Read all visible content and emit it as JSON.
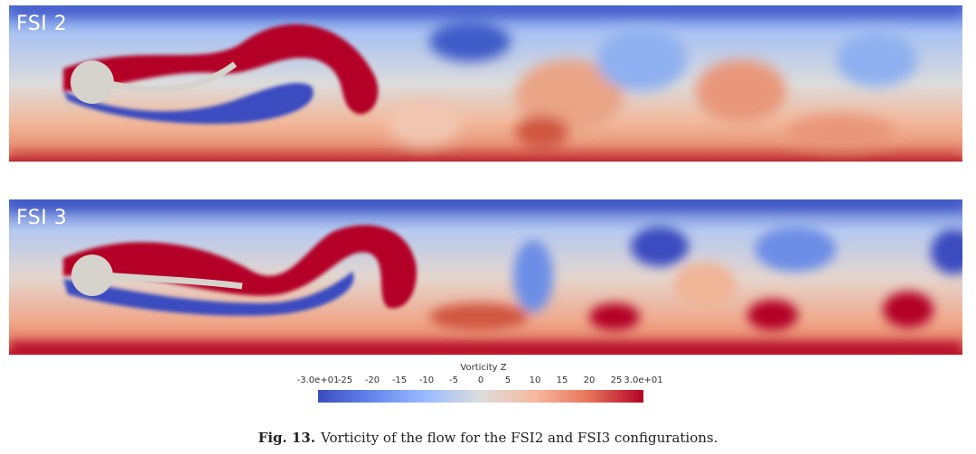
{
  "panels": [
    {
      "label": "FSI 2"
    },
    {
      "label": "FSI 3"
    }
  ],
  "colorbar": {
    "title": "Vorticity Z",
    "ticks": [
      "-3.0e+01",
      "-25",
      "-20",
      "-15",
      "-10",
      "-5",
      "0",
      "5",
      "10",
      "15",
      "20",
      "25",
      "3.0e+01"
    ],
    "colormap": [
      "#3b4cc0",
      "#dddddd",
      "#b40426"
    ]
  },
  "caption": {
    "label": "Fig. 13.",
    "text": "Vorticity of the flow for the FSI2 and FSI3 configurations."
  }
}
